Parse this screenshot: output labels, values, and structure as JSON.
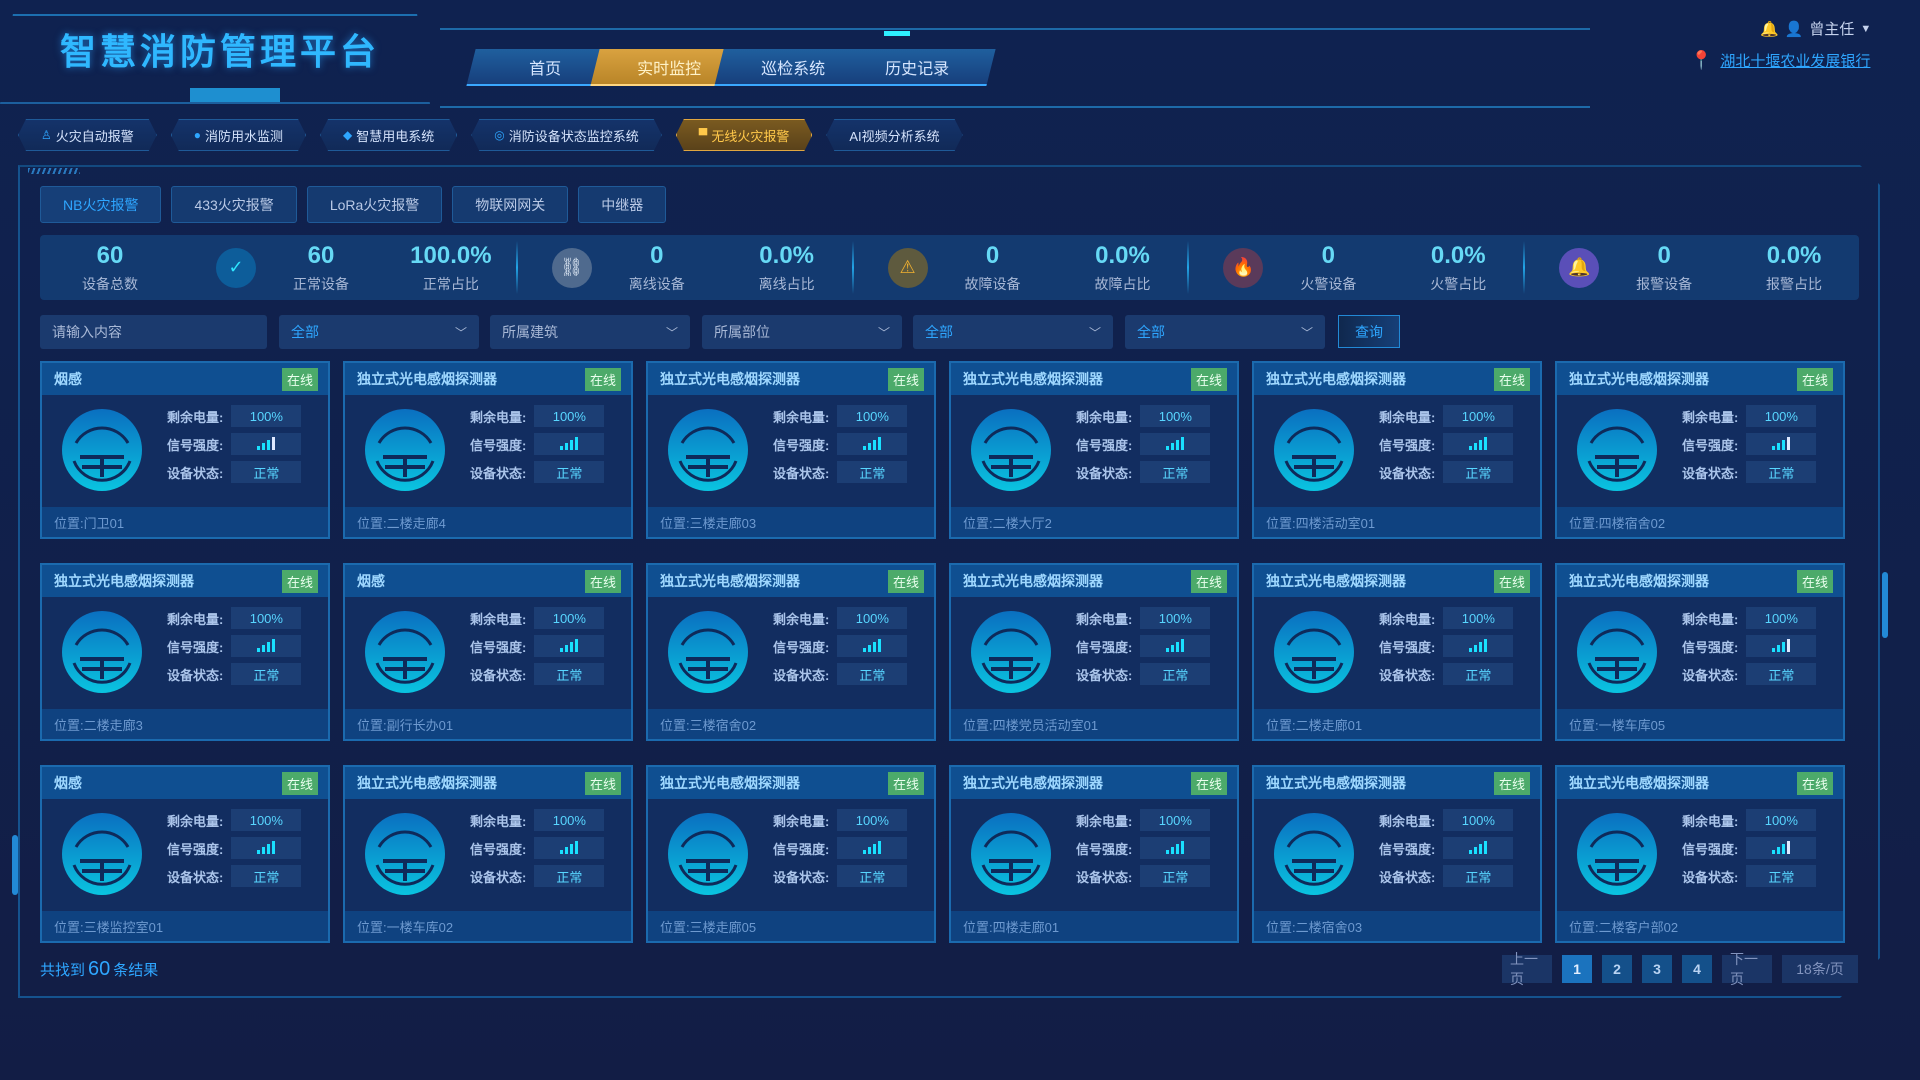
{
  "app": {
    "title": "智慧消防管理平台"
  },
  "nav": {
    "tabs": [
      {
        "label": "首页",
        "active": false
      },
      {
        "label": "实时监控",
        "active": true
      },
      {
        "label": "巡检系统",
        "active": false
      },
      {
        "label": "历史记录",
        "active": false
      }
    ]
  },
  "user": {
    "name": "曾主任",
    "bank": "湖北十堰农业发展银行",
    "icons": [
      "bell-icon",
      "user-icon",
      "caret-down-icon",
      "location-pin-icon"
    ]
  },
  "subtabs": [
    {
      "label": "火灾自动报警",
      "icon": "♙",
      "active": false
    },
    {
      "label": "消防用水监测",
      "icon": "●",
      "active": false
    },
    {
      "label": "智慧用电系统",
      "icon": "◆",
      "active": false
    },
    {
      "label": "消防设备状态监控系统",
      "icon": "◎",
      "active": false
    },
    {
      "label": "无线火灾报警",
      "icon": "▀",
      "active": true
    },
    {
      "label": "AI视频分析系统",
      "icon": "",
      "active": false
    }
  ],
  "type_tabs": [
    {
      "label": "NB火灾报警",
      "active": true
    },
    {
      "label": "433火灾报警",
      "active": false
    },
    {
      "label": "LoRa火灾报警",
      "active": false
    },
    {
      "label": "物联网网关",
      "active": false
    },
    {
      "label": "中继器",
      "active": false
    }
  ],
  "stats": {
    "total": {
      "value": "60",
      "label": "设备总数"
    },
    "groups": [
      {
        "icon": "check-circle-icon",
        "glyph": "✓",
        "color": "#0d5d9a",
        "glyph_color": "#2ee6ff",
        "count": "60",
        "count_label": "正常设备",
        "ratio": "100.0%",
        "ratio_label": "正常占比"
      },
      {
        "icon": "broken-link-icon",
        "glyph": "⛓",
        "color": "#4f6a8e",
        "glyph_color": "#dfe9f5",
        "count": "0",
        "count_label": "离线设备",
        "ratio": "0.0%",
        "ratio_label": "离线占比"
      },
      {
        "icon": "warning-icon",
        "glyph": "⚠",
        "color": "#5e5a3e",
        "glyph_color": "#f0b030",
        "count": "0",
        "count_label": "故障设备",
        "ratio": "0.0%",
        "ratio_label": "故障占比"
      },
      {
        "icon": "fire-icon",
        "glyph": "🔥",
        "color": "#5a3a5a",
        "glyph_color": "#ff5a3a",
        "count": "0",
        "count_label": "火警设备",
        "ratio": "0.0%",
        "ratio_label": "火警占比"
      },
      {
        "icon": "alarm-bell-icon",
        "glyph": "🔔",
        "color": "#5a4fb8",
        "glyph_color": "#a98cff",
        "count": "0",
        "count_label": "报警设备",
        "ratio": "0.0%",
        "ratio_label": "报警占比"
      }
    ]
  },
  "filters": {
    "search_placeholder": "请输入内容",
    "selects": [
      {
        "value": "全部",
        "highlight": true
      },
      {
        "value": "所属建筑",
        "highlight": false
      },
      {
        "value": "所属部位",
        "highlight": false
      },
      {
        "value": "全部",
        "highlight": true
      },
      {
        "value": "全部",
        "highlight": true
      }
    ],
    "query_label": "查询"
  },
  "card_labels": {
    "battery": "剩余电量:",
    "signal": "信号强度:",
    "status": "设备状态:",
    "location_prefix": "位置: "
  },
  "devices": [
    {
      "name": "烟感",
      "online": "在线",
      "battery": "100%",
      "signal": 3,
      "status": "正常",
      "location": "门卫01"
    },
    {
      "name": "独立式光电感烟探测器",
      "online": "在线",
      "battery": "100%",
      "signal": 4,
      "status": "正常",
      "location": "二楼走廊4"
    },
    {
      "name": "独立式光电感烟探测器",
      "online": "在线",
      "battery": "100%",
      "signal": 4,
      "status": "正常",
      "location": "三楼走廊03"
    },
    {
      "name": "独立式光电感烟探测器",
      "online": "在线",
      "battery": "100%",
      "signal": 4,
      "status": "正常",
      "location": "二楼大厅2"
    },
    {
      "name": "独立式光电感烟探测器",
      "online": "在线",
      "battery": "100%",
      "signal": 4,
      "status": "正常",
      "location": "四楼活动室01"
    },
    {
      "name": "独立式光电感烟探测器",
      "online": "在线",
      "battery": "100%",
      "signal": 3,
      "status": "正常",
      "location": "四楼宿舍02"
    },
    {
      "name": "独立式光电感烟探测器",
      "online": "在线",
      "battery": "100%",
      "signal": 4,
      "status": "正常",
      "location": "二楼走廊3"
    },
    {
      "name": "烟感",
      "online": "在线",
      "battery": "100%",
      "signal": 4,
      "status": "正常",
      "location": "副行长办01"
    },
    {
      "name": "独立式光电感烟探测器",
      "online": "在线",
      "battery": "100%",
      "signal": 4,
      "status": "正常",
      "location": "三楼宿舍02"
    },
    {
      "name": "独立式光电感烟探测器",
      "online": "在线",
      "battery": "100%",
      "signal": 4,
      "status": "正常",
      "location": "四楼党员活动室01"
    },
    {
      "name": "独立式光电感烟探测器",
      "online": "在线",
      "battery": "100%",
      "signal": 4,
      "status": "正常",
      "location": "二楼走廊01"
    },
    {
      "name": "独立式光电感烟探测器",
      "online": "在线",
      "battery": "100%",
      "signal": 3,
      "status": "正常",
      "location": "一楼车库05"
    },
    {
      "name": "烟感",
      "online": "在线",
      "battery": "100%",
      "signal": 4,
      "status": "正常",
      "location": "三楼监控室01"
    },
    {
      "name": "独立式光电感烟探测器",
      "online": "在线",
      "battery": "100%",
      "signal": 4,
      "status": "正常",
      "location": "一楼车库02"
    },
    {
      "name": "独立式光电感烟探测器",
      "online": "在线",
      "battery": "100%",
      "signal": 4,
      "status": "正常",
      "location": "三楼走廊05"
    },
    {
      "name": "独立式光电感烟探测器",
      "online": "在线",
      "battery": "100%",
      "signal": 4,
      "status": "正常",
      "location": "四楼走廊01"
    },
    {
      "name": "独立式光电感烟探测器",
      "online": "在线",
      "battery": "100%",
      "signal": 4,
      "status": "正常",
      "location": "二楼宿舍03"
    },
    {
      "name": "独立式光电感烟探测器",
      "online": "在线",
      "battery": "100%",
      "signal": 3,
      "status": "正常",
      "location": "二楼客户部02"
    }
  ],
  "footer": {
    "result_prefix": "共找到",
    "result_count": "60",
    "result_suffix": "条结果",
    "prev": "上一页",
    "pages": [
      "1",
      "2",
      "3",
      "4"
    ],
    "current_page": "1",
    "next": "下一页",
    "page_size": "18条/页"
  },
  "colors": {
    "accent": "#2ea6ff",
    "active_tab": "#d9a240",
    "online_badge": "#4caa6a",
    "value": "#58d6ff"
  }
}
